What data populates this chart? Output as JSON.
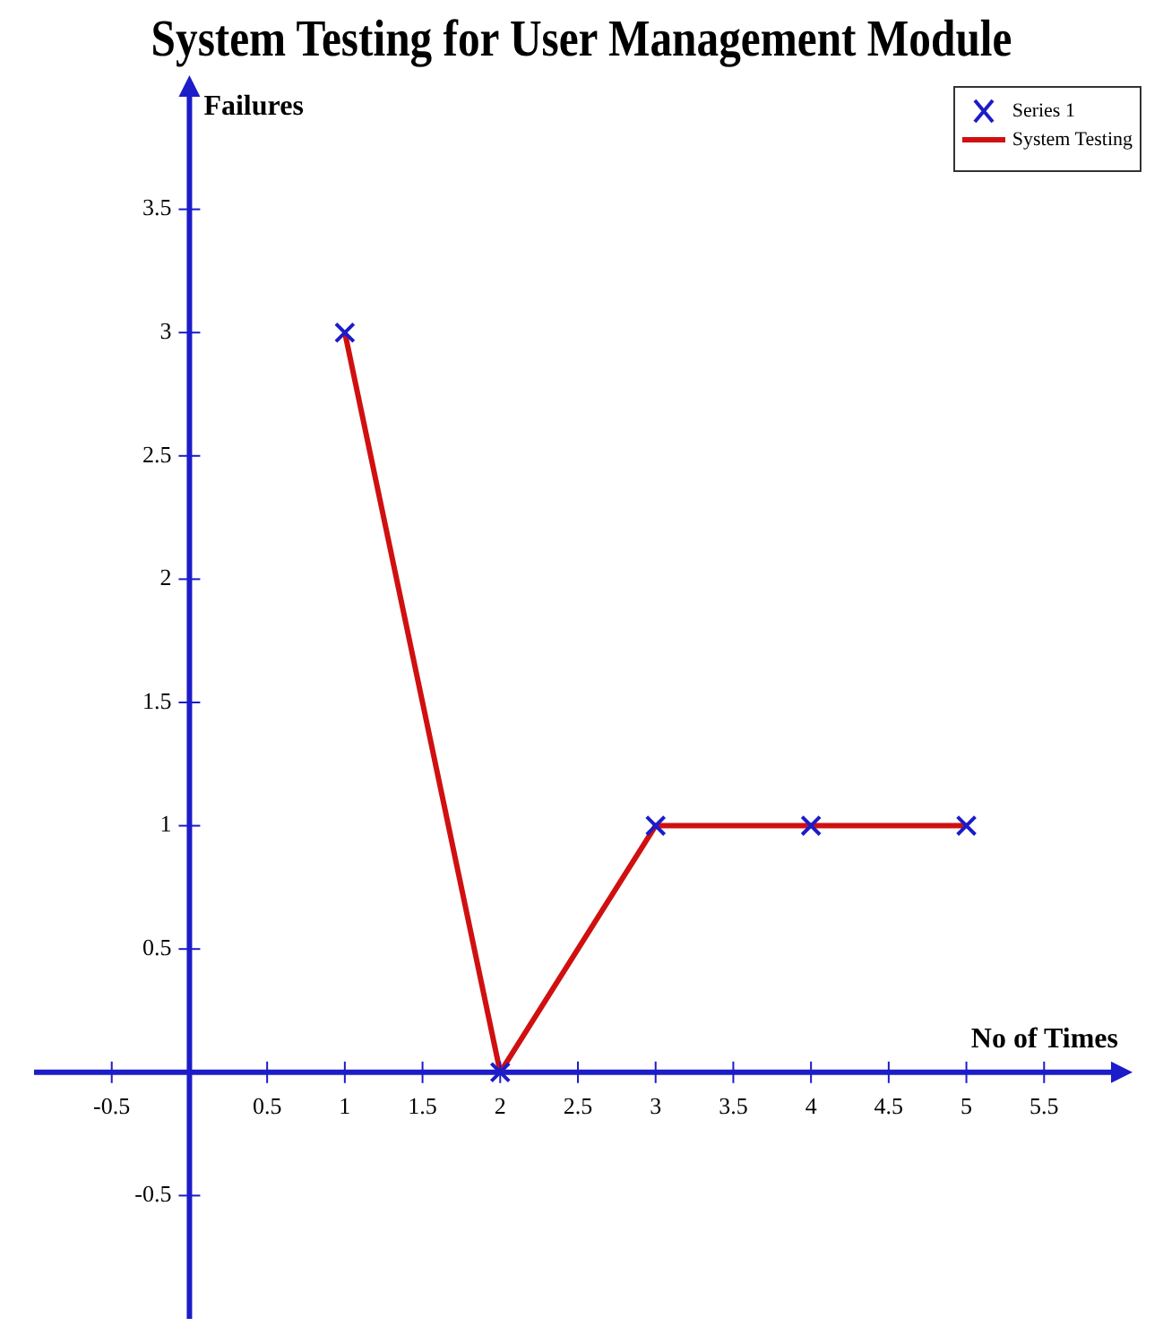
{
  "chart_data": {
    "type": "line",
    "title": "System Testing for User Management Module",
    "xlabel": "No of Times",
    "ylabel": "Failures",
    "x": [
      1,
      2,
      3,
      4,
      5
    ],
    "series": [
      {
        "name": "Series 1",
        "type": "scatter",
        "color": "#1c1cc8",
        "marker": "cross",
        "values": [
          3,
          0,
          1,
          1,
          1
        ]
      },
      {
        "name": "System Testing",
        "type": "line",
        "color": "#d01010",
        "marker": "none",
        "values": [
          3,
          0,
          1,
          1,
          1
        ]
      }
    ],
    "xlim": [
      -1,
      6
    ],
    "ylim": [
      -1,
      4
    ],
    "xticks": [
      -0.5,
      0.5,
      1,
      1.5,
      2,
      2.5,
      3,
      3.5,
      4,
      4.5,
      5,
      5.5
    ],
    "yticks": [
      -0.5,
      0.5,
      1,
      1.5,
      2,
      2.5,
      3,
      3.5
    ],
    "grid": false,
    "legend": "top right"
  }
}
